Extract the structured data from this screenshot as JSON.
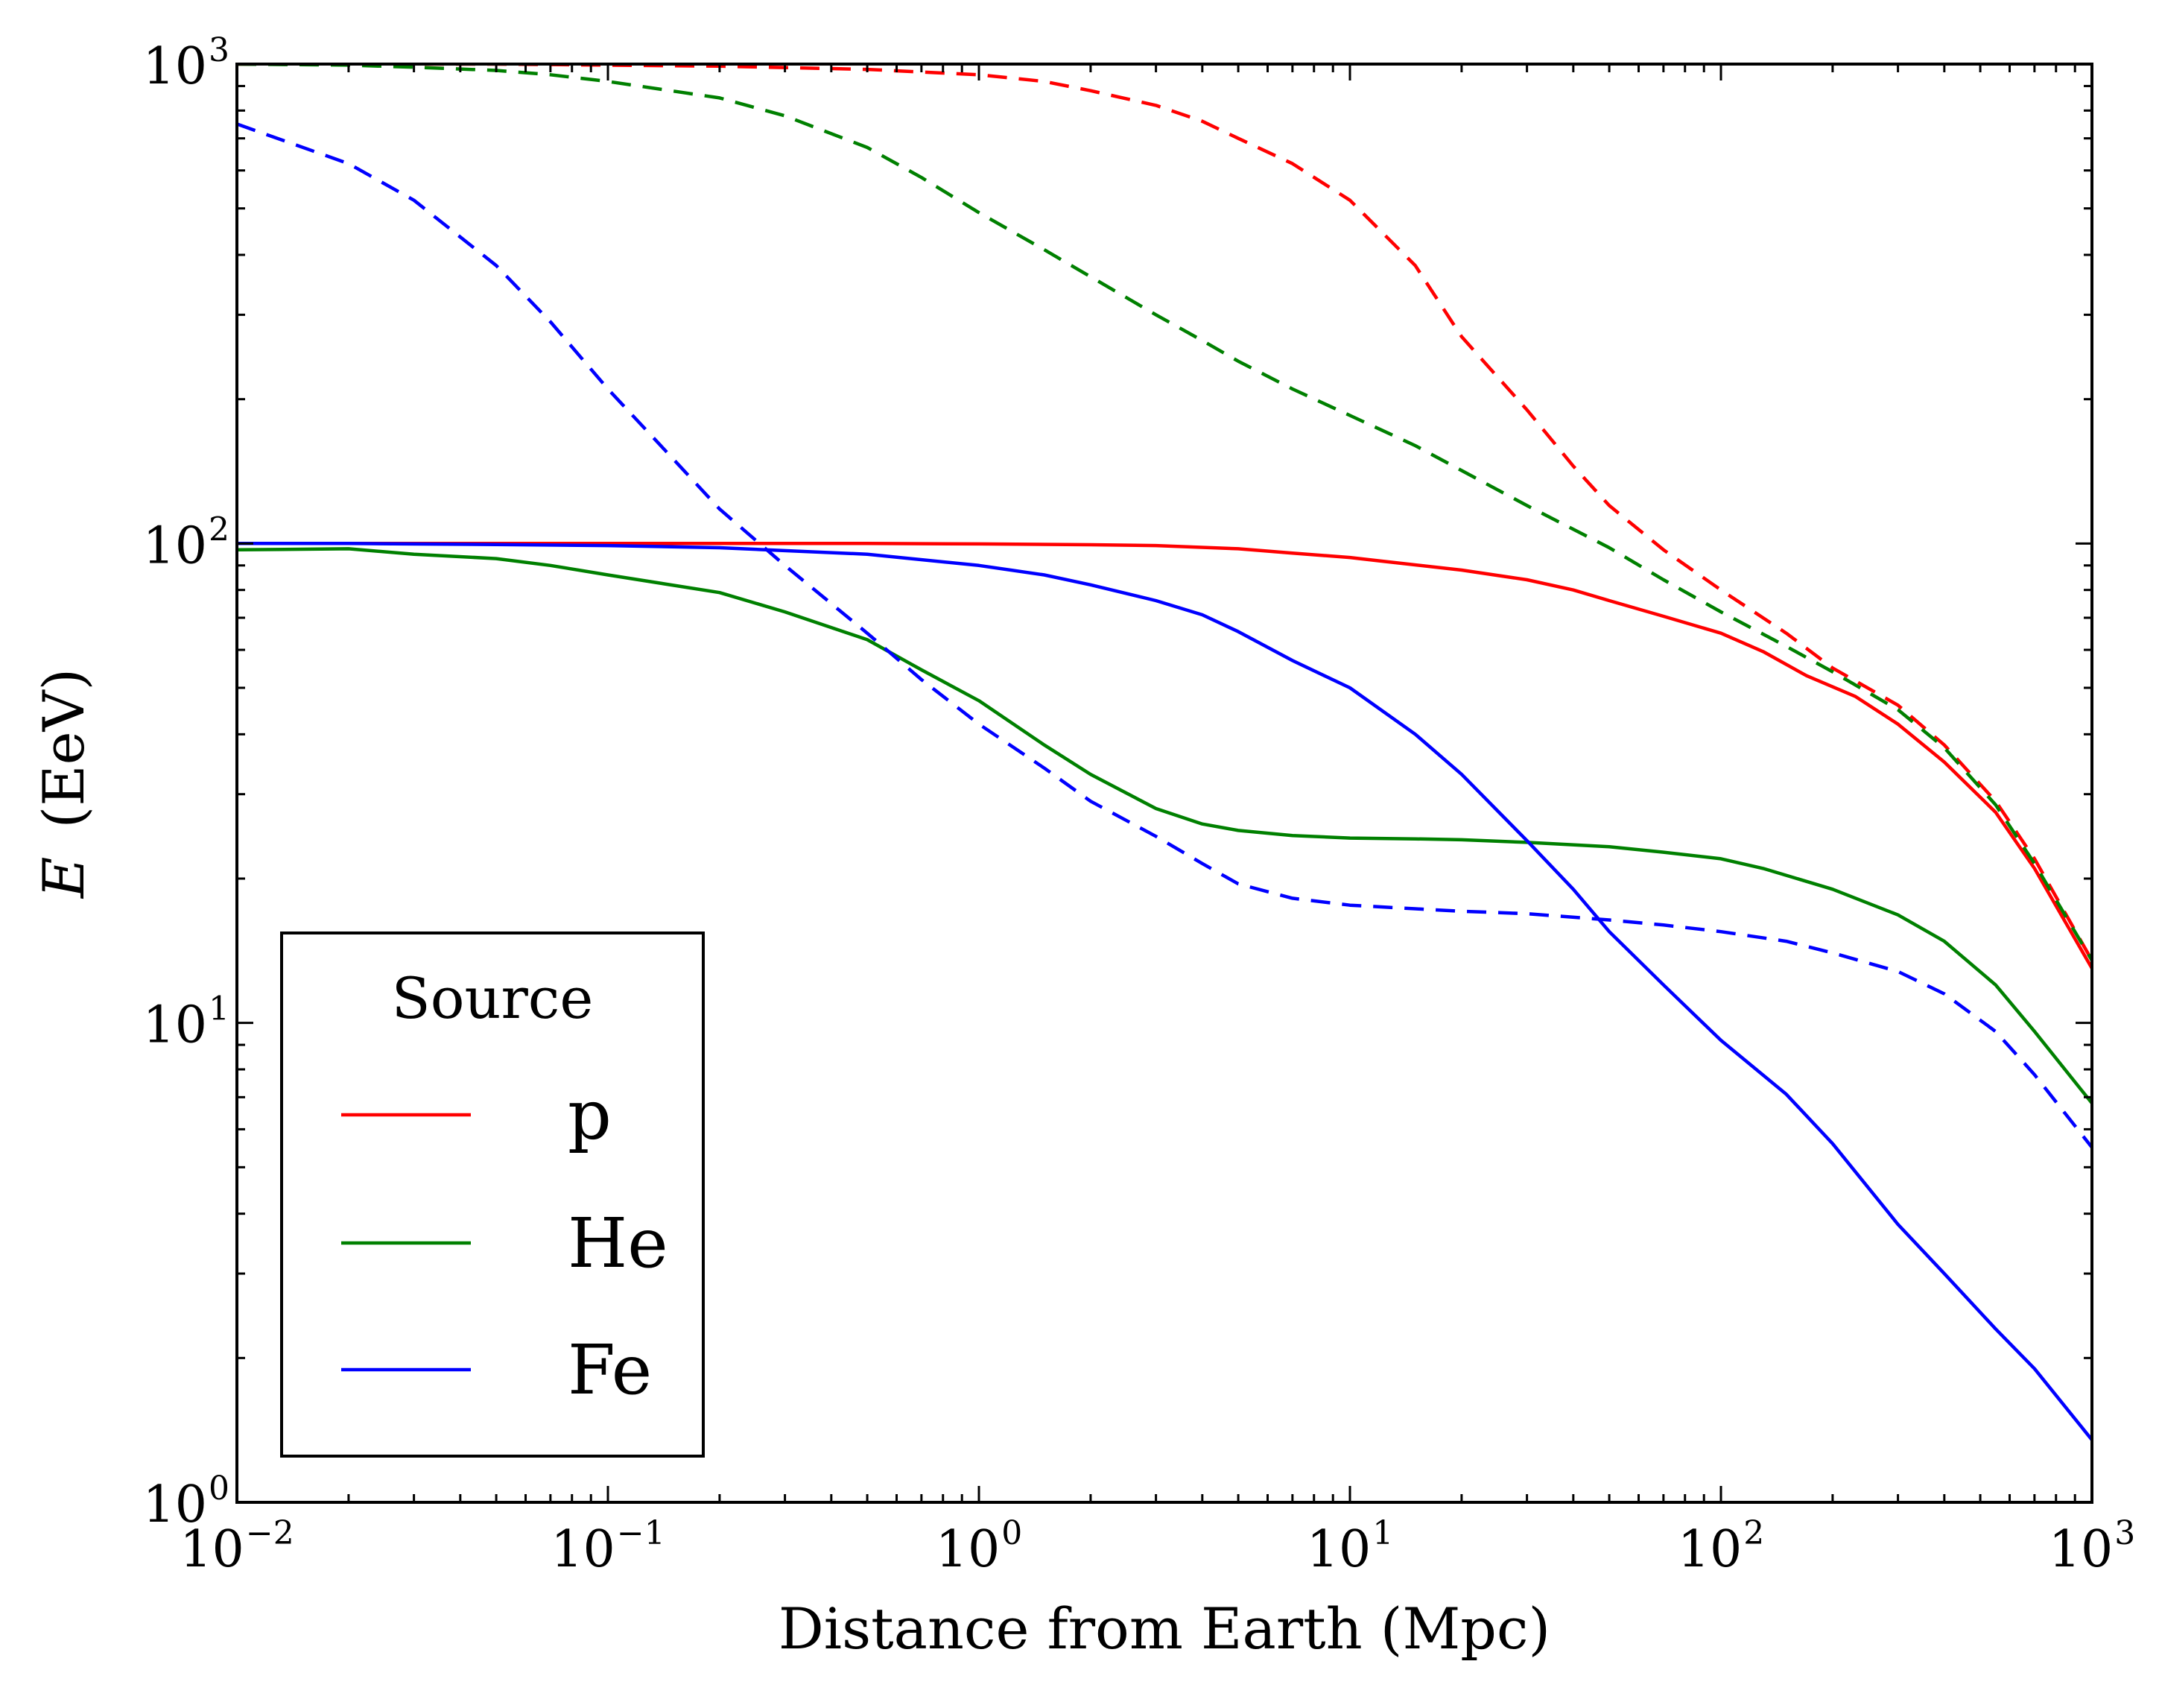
{
  "chart_data": {
    "type": "line",
    "xlabel": "Distance from Earth (Mpc)",
    "ylabel_var": "E",
    "ylabel_unit": "(EeV)",
    "x_scale": "log",
    "y_scale": "log",
    "xlim": [
      0.01,
      1000
    ],
    "ylim": [
      1,
      1000
    ],
    "x_ticks": [
      {
        "base": "10",
        "exp": "−2",
        "value": 0.01
      },
      {
        "base": "10",
        "exp": "−1",
        "value": 0.1
      },
      {
        "base": "10",
        "exp": "0",
        "value": 1
      },
      {
        "base": "10",
        "exp": "1",
        "value": 10
      },
      {
        "base": "10",
        "exp": "2",
        "value": 100
      },
      {
        "base": "10",
        "exp": "3",
        "value": 1000
      }
    ],
    "y_ticks": [
      {
        "base": "10",
        "exp": "0",
        "value": 1
      },
      {
        "base": "10",
        "exp": "1",
        "value": 10
      },
      {
        "base": "10",
        "exp": "2",
        "value": 100
      },
      {
        "base": "10",
        "exp": "3",
        "value": 1000
      }
    ],
    "grid": false,
    "legend": {
      "title": "Source",
      "placement": "lower-left",
      "entries": [
        {
          "label": "p",
          "color": "#ff0000"
        },
        {
          "label": "He",
          "color": "#008000"
        },
        {
          "label": "Fe",
          "color": "#0000ff"
        }
      ]
    },
    "series": [
      {
        "name": "p",
        "color": "#ff0000",
        "style": "solid",
        "x": [
          0.01,
          0.02,
          0.05,
          0.1,
          0.2,
          0.5,
          1,
          2,
          3,
          5,
          7,
          10,
          12,
          20,
          30,
          40,
          50,
          70,
          100,
          130,
          170,
          230,
          300,
          400,
          550,
          700,
          1000
        ],
        "y": [
          100,
          100,
          100,
          100,
          100,
          100,
          99.8,
          99.4,
          99,
          97.5,
          95.5,
          93.5,
          92,
          88,
          84,
          80,
          76,
          70.5,
          65,
          59.5,
          53,
          48,
          42,
          35,
          27.5,
          21,
          13
        ]
      },
      {
        "name": "p",
        "color": "#ff0000",
        "style": "dashed",
        "x": [
          0.01,
          0.05,
          0.1,
          0.2,
          0.5,
          1,
          1.5,
          2,
          3,
          4,
          5,
          7,
          10,
          15,
          20,
          30,
          40,
          50,
          70,
          100,
          150,
          200,
          300,
          400,
          550,
          700,
          1000
        ],
        "y": [
          1000,
          1000,
          995,
          990,
          975,
          950,
          920,
          880,
          820,
          760,
          700,
          620,
          520,
          380,
          270,
          190,
          145,
          120,
          97,
          80,
          65,
          55,
          46,
          38,
          29,
          22,
          13.5
        ]
      },
      {
        "name": "He",
        "color": "#008000",
        "style": "solid",
        "x": [
          0.01,
          0.02,
          0.03,
          0.05,
          0.07,
          0.1,
          0.2,
          0.3,
          0.5,
          0.7,
          1,
          1.5,
          2,
          3,
          4,
          5,
          7,
          10,
          15,
          20,
          30,
          50,
          70,
          100,
          130,
          200,
          300,
          400,
          550,
          700,
          1000
        ],
        "y": [
          97,
          97.5,
          95,
          93,
          90,
          86,
          79,
          72,
          63,
          54.5,
          47,
          38,
          33,
          28,
          26,
          25.2,
          24.6,
          24.3,
          24.2,
          24.1,
          23.8,
          23.3,
          22.7,
          22,
          21,
          19,
          16.8,
          14.8,
          12,
          9.6,
          6.8
        ]
      },
      {
        "name": "He",
        "color": "#008000",
        "style": "dashed",
        "x": [
          0.01,
          0.02,
          0.03,
          0.05,
          0.07,
          0.1,
          0.2,
          0.3,
          0.5,
          0.7,
          1,
          1.5,
          2,
          3,
          4,
          5,
          7,
          10,
          15,
          20,
          30,
          50,
          70,
          100,
          150,
          200,
          300,
          400,
          550,
          700,
          1000
        ],
        "y": [
          1000,
          995,
          985,
          970,
          950,
          920,
          850,
          780,
          670,
          580,
          490,
          410,
          360,
          300,
          265,
          240,
          210,
          185,
          160,
          142,
          120,
          98,
          84,
          72,
          61,
          54,
          45,
          37.5,
          28.5,
          21.5,
          13.5
        ]
      },
      {
        "name": "Fe",
        "color": "#0000ff",
        "style": "solid",
        "x": [
          0.01,
          0.02,
          0.05,
          0.1,
          0.2,
          0.5,
          1,
          1.5,
          2,
          3,
          4,
          5,
          7,
          10,
          15,
          20,
          30,
          40,
          50,
          70,
          100,
          150,
          200,
          300,
          400,
          550,
          700,
          1000
        ],
        "y": [
          100,
          100,
          99.5,
          99,
          98,
          95,
          90,
          86,
          82,
          76,
          71,
          65.5,
          57,
          50,
          40,
          33,
          24,
          19,
          15.5,
          12,
          9.2,
          7.1,
          5.6,
          3.8,
          3,
          2.3,
          1.9,
          1.35
        ]
      },
      {
        "name": "Fe",
        "color": "#0000ff",
        "style": "dashed",
        "x": [
          0.01,
          0.02,
          0.03,
          0.05,
          0.07,
          0.1,
          0.15,
          0.2,
          0.3,
          0.5,
          0.7,
          1,
          1.5,
          2,
          3,
          4,
          5,
          7,
          10,
          15,
          20,
          30,
          50,
          70,
          100,
          150,
          200,
          300,
          400,
          550,
          700,
          1000
        ],
        "y": [
          750,
          620,
          520,
          380,
          290,
          210,
          150,
          118,
          90,
          65,
          52,
          42,
          34,
          29,
          24.5,
          21.5,
          19.5,
          18.2,
          17.6,
          17.3,
          17.1,
          16.9,
          16.4,
          16,
          15.5,
          14.8,
          14,
          12.8,
          11.5,
          9.6,
          7.8,
          5.5
        ]
      }
    ]
  }
}
